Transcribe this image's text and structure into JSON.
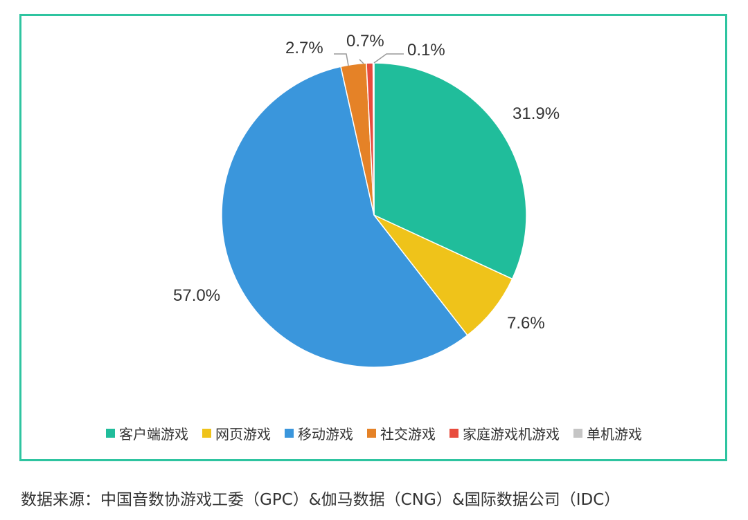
{
  "chart_data": {
    "type": "pie",
    "title": "",
    "slices": [
      {
        "name": "客户端游戏",
        "value": 31.9,
        "label": "31.9%",
        "color": "#20bd9b"
      },
      {
        "name": "网页游戏",
        "value": 7.6,
        "label": "7.6%",
        "color": "#efc31a"
      },
      {
        "name": "移动游戏",
        "value": 57.0,
        "label": "57.0%",
        "color": "#3a96dc"
      },
      {
        "name": "社交游戏",
        "value": 2.7,
        "label": "2.7%",
        "color": "#e58227"
      },
      {
        "name": "家庭游戏机游戏",
        "value": 0.7,
        "label": "0.7%",
        "color": "#e84c3d"
      },
      {
        "name": "单机游戏",
        "value": 0.1,
        "label": "0.1%",
        "color": "#c5c5c5"
      }
    ],
    "legend_position": "bottom",
    "start_angle": "12 o'clock",
    "direction": "clockwise"
  },
  "source_text": "数据来源：中国音数协游戏工委（GPC）&伽马数据（CNG）&国际数据公司（IDC）",
  "colors": {
    "frame_border": "#2ec4a0",
    "text": "#333333",
    "leader_line": "#999999"
  }
}
